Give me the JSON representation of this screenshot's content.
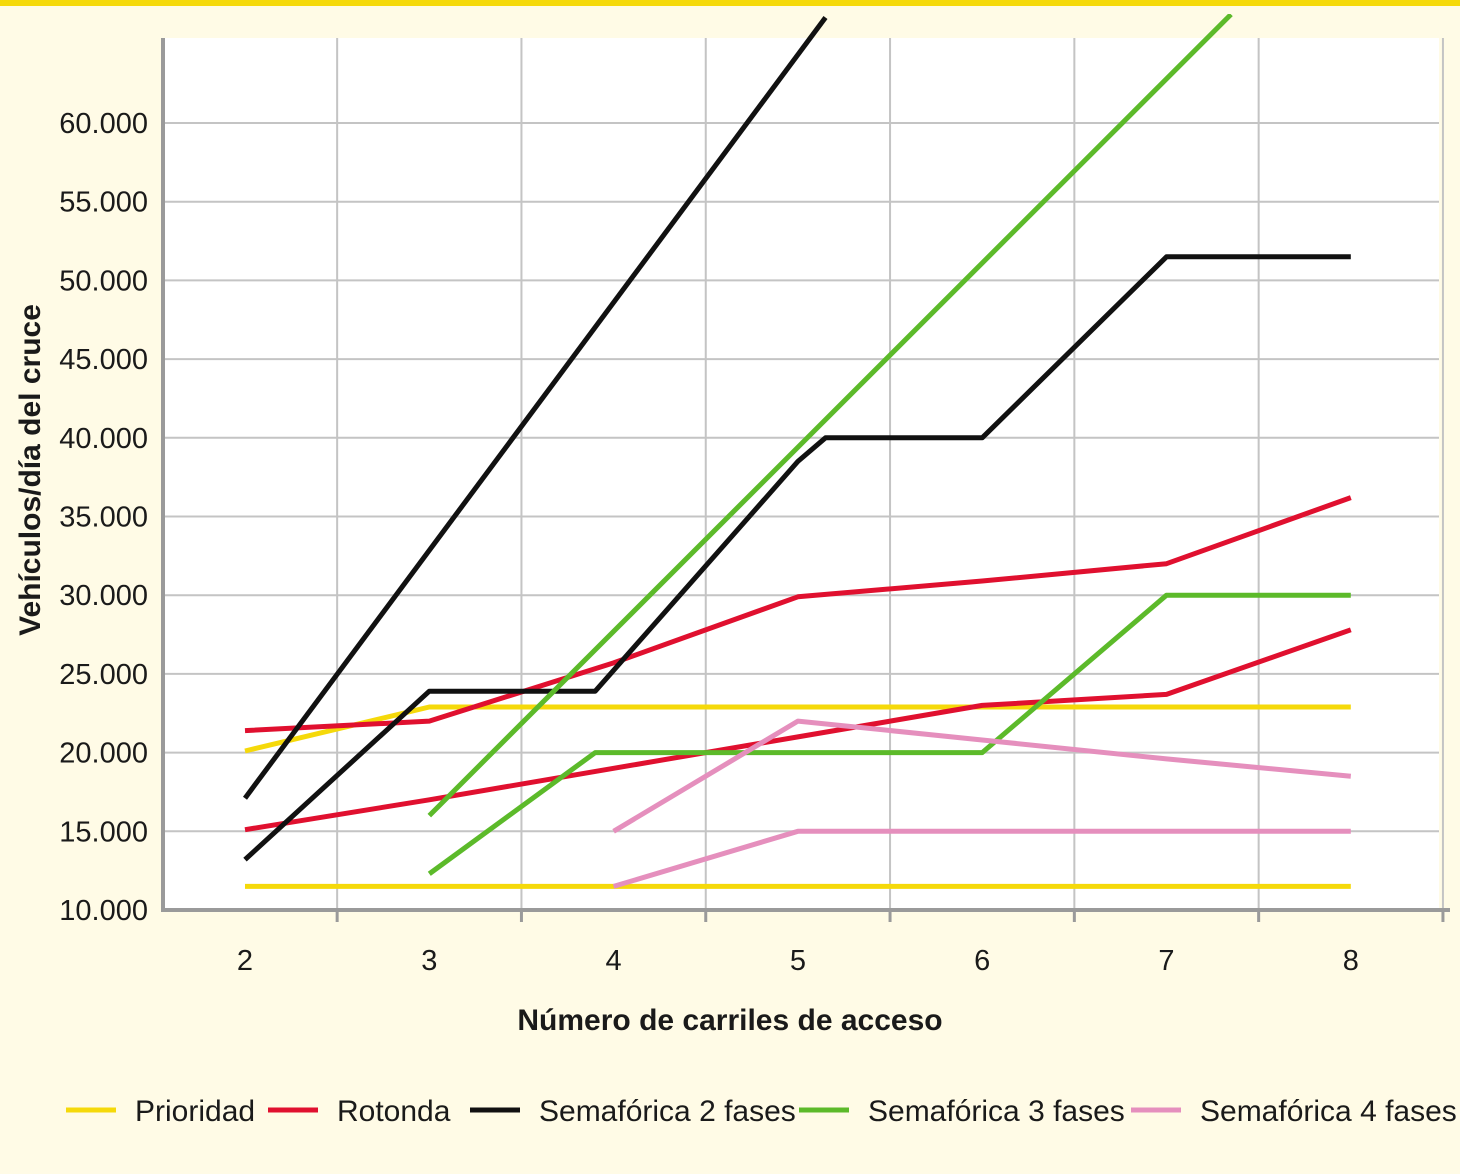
{
  "chart_data": {
    "type": "line",
    "title": "",
    "xlabel": "Número de carriles de acceso",
    "ylabel": "Vehículos/día del cruce",
    "xlim": [
      1.5,
      9.0
    ],
    "ylim": [
      10000,
      65500
    ],
    "x_ticks": [
      2,
      3,
      4,
      5,
      6,
      7,
      8
    ],
    "y_ticks": [
      10000,
      15000,
      20000,
      25000,
      30000,
      35000,
      40000,
      45000,
      50000,
      55000,
      60000
    ],
    "x_tick_labels": [
      "2",
      "3",
      "4",
      "5",
      "6",
      "7",
      "8"
    ],
    "y_tick_labels": [
      "10.000",
      "15.000",
      "20.000",
      "25.000",
      "30.000",
      "35.000",
      "40.000",
      "45.000",
      "50.000",
      "55.000",
      "60.000"
    ],
    "grid": true,
    "legend_position": "bottom",
    "legend": [
      {
        "name": "Prioridad",
        "color": "#f5d90a"
      },
      {
        "name": "Rotonda",
        "color": "#e0102f"
      },
      {
        "name": "Semafórica 2 fases",
        "color": "#111111"
      },
      {
        "name": "Semafórica 3 fases",
        "color": "#5cba2a"
      },
      {
        "name": "Semafórica 4 fases",
        "color": "#e58fbd"
      }
    ],
    "series": [
      {
        "legend": "Prioridad",
        "points": [
          [
            2,
            11500
          ],
          [
            8,
            11500
          ]
        ]
      },
      {
        "legend": "Prioridad",
        "points": [
          [
            2,
            20100
          ],
          [
            3,
            22900
          ],
          [
            8,
            22900
          ]
        ]
      },
      {
        "legend": "Rotonda",
        "points": [
          [
            2,
            15100
          ],
          [
            3,
            17000
          ],
          [
            4,
            19000
          ],
          [
            5,
            21000
          ],
          [
            6,
            23000
          ],
          [
            7,
            23700
          ],
          [
            8,
            27800
          ]
        ]
      },
      {
        "legend": "Rotonda",
        "points": [
          [
            2,
            21400
          ],
          [
            3,
            22000
          ],
          [
            4,
            25700
          ],
          [
            5,
            29900
          ],
          [
            6,
            30900
          ],
          [
            7,
            32000
          ],
          [
            8,
            36200
          ]
        ]
      },
      {
        "legend": "Semafórica 2 fases",
        "points": [
          [
            2,
            13200
          ],
          [
            3,
            23900
          ],
          [
            3.9,
            23900
          ],
          [
            5,
            38500
          ],
          [
            5.15,
            40000
          ],
          [
            6,
            40000
          ],
          [
            7,
            51500
          ],
          [
            8,
            51500
          ]
        ]
      },
      {
        "legend": "Semafórica 2 fases",
        "points": [
          [
            2,
            17100
          ],
          [
            5.15,
            66700
          ]
        ]
      },
      {
        "legend": "Semafórica 3 fases",
        "points": [
          [
            3,
            12300
          ],
          [
            3.9,
            20000
          ],
          [
            6,
            20000
          ],
          [
            7,
            30000
          ],
          [
            8,
            30000
          ]
        ]
      },
      {
        "legend": "Semafórica 3 fases",
        "points": [
          [
            3,
            16000
          ],
          [
            7.35,
            66900
          ]
        ]
      },
      {
        "legend": "Semafórica 4 fases",
        "points": [
          [
            4,
            11500
          ],
          [
            5,
            15000
          ],
          [
            8,
            15000
          ]
        ]
      },
      {
        "legend": "Semafórica 4 fases",
        "points": [
          [
            4,
            15000
          ],
          [
            5,
            22000
          ],
          [
            6,
            20800
          ],
          [
            7,
            19600
          ],
          [
            8,
            18500
          ]
        ]
      }
    ]
  }
}
